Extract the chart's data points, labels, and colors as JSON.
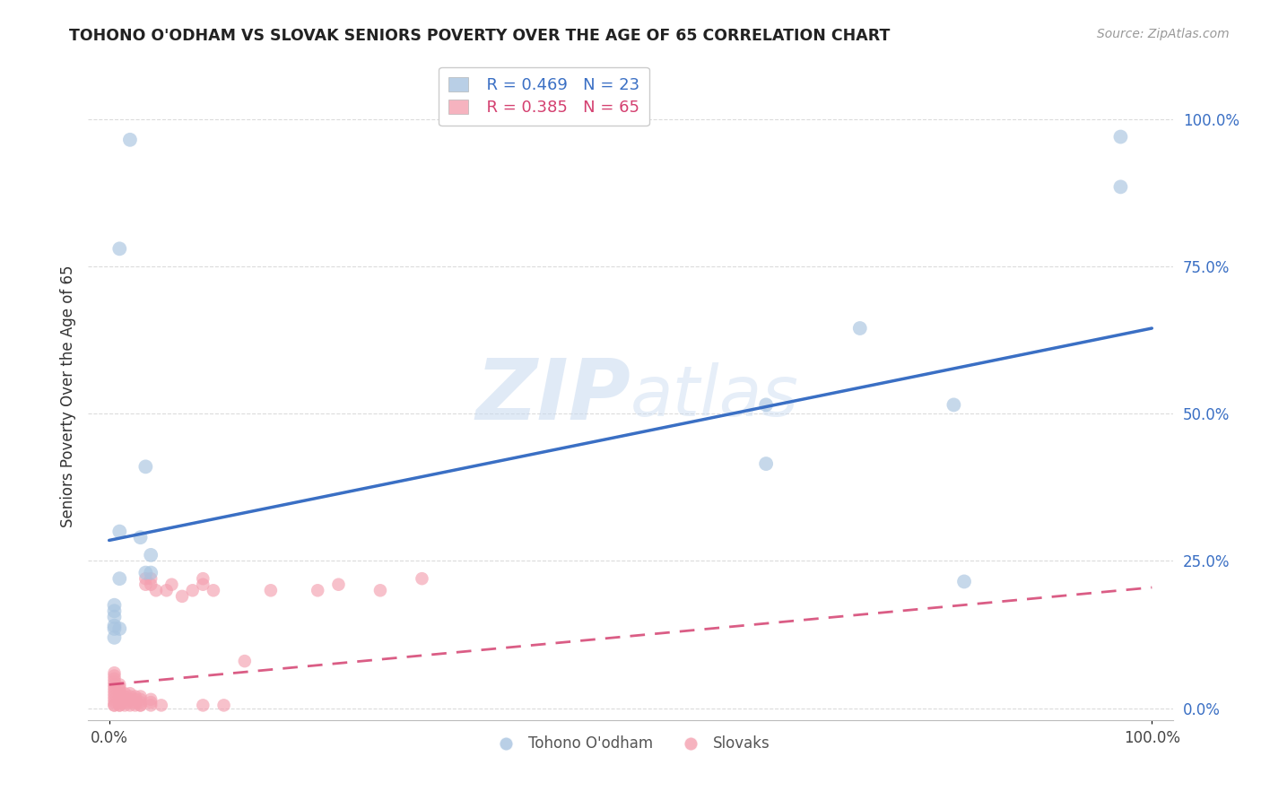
{
  "title": "TOHONO O'ODHAM VS SLOVAK SENIORS POVERTY OVER THE AGE OF 65 CORRELATION CHART",
  "source": "Source: ZipAtlas.com",
  "ylabel": "Seniors Poverty Over the Age of 65",
  "ytick_labels": [
    "0.0%",
    "25.0%",
    "50.0%",
    "75.0%",
    "100.0%"
  ],
  "ytick_values": [
    0.0,
    0.25,
    0.5,
    0.75,
    1.0
  ],
  "xlim": [
    -0.02,
    1.02
  ],
  "ylim": [
    -0.02,
    1.08
  ],
  "watermark_zip": "ZIP",
  "watermark_atlas": "atlas",
  "legend_blue_r": "R = 0.469",
  "legend_blue_n": "N = 23",
  "legend_pink_r": "R = 0.385",
  "legend_pink_n": "N = 65",
  "blue_color": "#a8c4e0",
  "pink_color": "#f4a0b0",
  "blue_line_color": "#3a6fc4",
  "pink_line_color": "#d44070",
  "tohono_label": "Tohono O'odham",
  "slovak_label": "Slovaks",
  "tohono_x": [
    0.02,
    0.01,
    0.005,
    0.005,
    0.005,
    0.005,
    0.005,
    0.005,
    0.01,
    0.01,
    0.01,
    0.03,
    0.04,
    0.04,
    0.035,
    0.035,
    0.63,
    0.63,
    0.72,
    0.81,
    0.82,
    0.97,
    0.97
  ],
  "tohono_y": [
    0.965,
    0.78,
    0.175,
    0.165,
    0.155,
    0.14,
    0.135,
    0.12,
    0.3,
    0.22,
    0.135,
    0.29,
    0.26,
    0.23,
    0.41,
    0.23,
    0.415,
    0.515,
    0.645,
    0.515,
    0.215,
    0.97,
    0.885
  ],
  "slovak_x": [
    0.005,
    0.005,
    0.005,
    0.005,
    0.005,
    0.005,
    0.005,
    0.005,
    0.005,
    0.005,
    0.005,
    0.005,
    0.005,
    0.01,
    0.01,
    0.01,
    0.01,
    0.01,
    0.01,
    0.01,
    0.01,
    0.01,
    0.015,
    0.015,
    0.015,
    0.015,
    0.015,
    0.02,
    0.02,
    0.02,
    0.02,
    0.02,
    0.025,
    0.025,
    0.025,
    0.025,
    0.03,
    0.03,
    0.03,
    0.03,
    0.03,
    0.035,
    0.035,
    0.04,
    0.04,
    0.04,
    0.04,
    0.04,
    0.045,
    0.05,
    0.055,
    0.06,
    0.07,
    0.08,
    0.09,
    0.09,
    0.09,
    0.1,
    0.11,
    0.13,
    0.155,
    0.2,
    0.22,
    0.26,
    0.3
  ],
  "slovak_y": [
    0.005,
    0.01,
    0.015,
    0.02,
    0.025,
    0.03,
    0.035,
    0.04,
    0.045,
    0.05,
    0.055,
    0.06,
    0.005,
    0.005,
    0.01,
    0.015,
    0.02,
    0.025,
    0.03,
    0.035,
    0.04,
    0.005,
    0.01,
    0.015,
    0.02,
    0.025,
    0.005,
    0.005,
    0.01,
    0.015,
    0.02,
    0.025,
    0.005,
    0.01,
    0.015,
    0.02,
    0.005,
    0.01,
    0.015,
    0.02,
    0.005,
    0.21,
    0.22,
    0.005,
    0.01,
    0.015,
    0.21,
    0.22,
    0.2,
    0.005,
    0.2,
    0.21,
    0.19,
    0.2,
    0.005,
    0.21,
    0.22,
    0.2,
    0.005,
    0.08,
    0.2,
    0.2,
    0.21,
    0.2,
    0.22
  ],
  "blue_trend_x": [
    0.0,
    1.0
  ],
  "blue_trend_y_start": 0.285,
  "blue_trend_y_end": 0.645,
  "pink_trend_x": [
    0.0,
    1.0
  ],
  "pink_trend_y_start": 0.04,
  "pink_trend_y_end": 0.205,
  "bg_color": "#FFFFFF",
  "grid_color": "#cccccc",
  "axis_color": "#3a6fc4"
}
